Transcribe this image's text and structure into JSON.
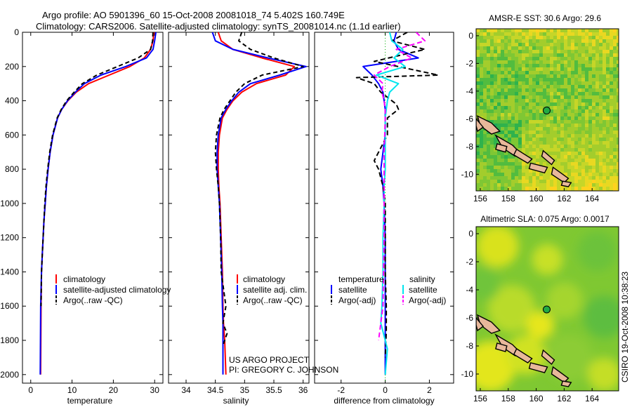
{
  "title": {
    "line1": "Argo profile: AO 5901396_60 15-Oct-2008 20081018_74 5.402S 160.749E",
    "line2": "Climatology: CARS2006. Satellite-adjusted climatology: synTS_20081014.nc (1.1d earlier)"
  },
  "colors": {
    "climatology": "#ff0000",
    "satellite": "#0000ff",
    "argo": "#000000",
    "sal_satellite": "#00e5ee",
    "sal_argo": "#ff00ff",
    "island": "#e8b89a",
    "marker": "#22aa44"
  },
  "chart_data": [
    {
      "type": "line",
      "id": "temperature",
      "xlabel": "temperature",
      "ylabel": "",
      "xlim": [
        -2,
        32
      ],
      "ylim": [
        2050,
        0
      ],
      "xticks": [
        0,
        10,
        20,
        30
      ],
      "yticks": [
        0,
        200,
        400,
        600,
        800,
        1000,
        1200,
        1400,
        1600,
        1800,
        2000
      ],
      "legend": [
        "climatology",
        "satellite-adjusted climatology",
        "Argo(..raw -QC)"
      ],
      "series": [
        {
          "name": "climatology",
          "color": "#ff0000",
          "dash": "",
          "x": [
            29.8,
            29.6,
            29.0,
            27.5,
            24.0,
            19.0,
            14.0,
            11.0,
            9.0,
            7.5,
            6.5,
            5.4,
            4.7,
            4.2,
            3.8,
            3.5,
            3.2,
            3.0,
            2.8,
            2.6,
            2.5,
            2.4
          ],
          "y": [
            0,
            50,
            100,
            150,
            200,
            250,
            300,
            350,
            400,
            450,
            500,
            600,
            700,
            800,
            900,
            1000,
            1100,
            1200,
            1300,
            1400,
            1600,
            2000
          ]
        },
        {
          "name": "satellite",
          "color": "#0000ff",
          "dash": "",
          "x": [
            30.3,
            30.0,
            29.6,
            28.0,
            23.0,
            17.0,
            13.0,
            10.8,
            8.9,
            7.5,
            6.5,
            5.4,
            4.7,
            4.2,
            3.8,
            3.5,
            3.2,
            3.0,
            2.8,
            2.6,
            2.4,
            2.3
          ],
          "y": [
            0,
            50,
            100,
            150,
            200,
            250,
            300,
            350,
            400,
            450,
            500,
            600,
            700,
            800,
            900,
            1000,
            1100,
            1200,
            1300,
            1400,
            1600,
            2000
          ]
        },
        {
          "name": "argo",
          "color": "#000000",
          "dash": "6,4",
          "x": [
            29.6,
            29.5,
            29.0,
            26.0,
            21.0,
            16.0,
            12.5,
            10.5,
            8.7,
            7.4,
            6.4,
            5.3,
            4.6,
            4.1,
            3.7,
            3.4,
            3.2,
            3.0,
            2.8,
            2.6,
            2.5
          ],
          "y": [
            0,
            50,
            100,
            150,
            200,
            250,
            300,
            350,
            400,
            450,
            500,
            600,
            700,
            800,
            900,
            1000,
            1100,
            1200,
            1300,
            1400,
            1600
          ]
        }
      ]
    },
    {
      "type": "line",
      "id": "salinity",
      "xlabel": "salinity",
      "ylabel": "",
      "xlim": [
        33.7,
        36.1
      ],
      "ylim": [
        2050,
        0
      ],
      "xticks": [
        34,
        34.5,
        35,
        35.5,
        36
      ],
      "legend": [
        "climatology",
        "satellite adj. clim.",
        "Argo(..raw -QC)"
      ],
      "series": [
        {
          "name": "climatology",
          "color": "#ff0000",
          "dash": "",
          "x": [
            34.55,
            34.6,
            34.8,
            35.3,
            35.85,
            35.7,
            35.2,
            34.95,
            34.8,
            34.7,
            34.62,
            34.57,
            34.55,
            34.55,
            34.56,
            34.58,
            34.6,
            34.62,
            34.63,
            34.64,
            34.66,
            34.68
          ],
          "y": [
            0,
            50,
            100,
            150,
            200,
            250,
            300,
            350,
            400,
            450,
            500,
            600,
            700,
            800,
            900,
            1000,
            1200,
            1400,
            1600,
            1700,
            1800,
            2000
          ]
        },
        {
          "name": "satellite",
          "color": "#0000ff",
          "dash": "",
          "x": [
            34.45,
            34.5,
            34.8,
            35.4,
            36.05,
            35.6,
            35.1,
            34.9,
            34.78,
            34.68,
            34.6,
            34.55,
            34.53,
            34.53,
            34.55,
            34.57,
            34.59,
            34.61,
            34.62,
            34.63,
            34.63,
            34.63
          ],
          "y": [
            0,
            50,
            100,
            150,
            200,
            250,
            300,
            350,
            400,
            450,
            500,
            600,
            700,
            800,
            900,
            1000,
            1200,
            1400,
            1600,
            1700,
            1800,
            2000
          ]
        },
        {
          "name": "argo",
          "color": "#000000",
          "dash": "6,4",
          "x": [
            34.95,
            34.9,
            35.1,
            35.5,
            36.0,
            35.3,
            35.0,
            34.85,
            34.75,
            34.65,
            34.58,
            34.52,
            34.5,
            34.52,
            34.55,
            34.57,
            34.59,
            34.6,
            34.68,
            34.63,
            34.7,
            34.64
          ],
          "y": [
            0,
            50,
            100,
            150,
            200,
            250,
            300,
            350,
            400,
            450,
            500,
            600,
            700,
            800,
            900,
            1000,
            1200,
            1400,
            1600,
            1700,
            1760,
            1820
          ]
        }
      ]
    },
    {
      "type": "line",
      "id": "difference",
      "xlabel": "difference from climatology",
      "xlim": [
        -3.2,
        3.1
      ],
      "ylim": [
        2050,
        0
      ],
      "xticks": [
        -2,
        0,
        2
      ],
      "legend": {
        "temperature_header": "temperature",
        "salinity_header": "salinity",
        "temperature": [
          "satellite",
          "Argo(-adj)"
        ],
        "salinity": [
          "satellite",
          "Argo(-adj)"
        ]
      },
      "series": [
        {
          "name": "temperature satellite",
          "color": "#0000ff",
          "dash": "",
          "x": [
            0.5,
            0.4,
            0.6,
            1.5,
            -1.0,
            -0.6,
            -0.3,
            -0.1,
            -0.05,
            0,
            0,
            0,
            -0.1,
            -0.2,
            -0.1,
            -0.05,
            0,
            0,
            0,
            0,
            0,
            0
          ],
          "y": [
            0,
            50,
            100,
            150,
            200,
            250,
            300,
            350,
            400,
            450,
            500,
            600,
            700,
            800,
            900,
            1000,
            1200,
            1400,
            1600,
            1700,
            1800,
            2000
          ]
        },
        {
          "name": "temperature argo",
          "color": "#000000",
          "dash": "7,4",
          "x": [
            1.0,
            0.3,
            1.8,
            -0.5,
            2.4,
            -1.3,
            -0.5,
            -0.2,
            0.5,
            0.6,
            0.1,
            0.1,
            -0.5,
            -0.3,
            -0.1,
            0,
            0,
            0,
            0.05,
            0.05,
            0
          ],
          "y": [
            0,
            50,
            100,
            170,
            250,
            265,
            300,
            350,
            420,
            450,
            500,
            600,
            750,
            800,
            900,
            1000,
            1200,
            1400,
            1600,
            1750,
            1900
          ]
        },
        {
          "name": "salinity satellite",
          "color": "#00e5ee",
          "dash": "",
          "x": [
            0.2,
            0.3,
            0.8,
            0.4,
            0.9,
            -0.4,
            0.6,
            0.2,
            0.1,
            0.05,
            0,
            0,
            0,
            0,
            -0.05,
            -0.05,
            -0.1,
            -0.1,
            -0.15,
            -0.2,
            0.1,
            0
          ],
          "y": [
            0,
            50,
            100,
            150,
            200,
            250,
            300,
            350,
            400,
            450,
            500,
            600,
            700,
            800,
            900,
            1000,
            1200,
            1400,
            1600,
            1700,
            1850,
            2000
          ]
        },
        {
          "name": "salinity argo",
          "color": "#ff00ff",
          "dash": "7,4",
          "x": [
            1.4,
            1.8,
            0.5,
            1.2,
            0.2,
            -0.5,
            -0.1,
            -0.15,
            -0.05,
            0,
            0,
            -0.02,
            -0.05,
            -0.05,
            -0.05,
            -0.05,
            -0.05,
            -0.08,
            -0.1,
            -0.2,
            -0.3
          ],
          "y": [
            0,
            50,
            100,
            150,
            200,
            250,
            300,
            350,
            400,
            450,
            500,
            600,
            700,
            800,
            900,
            1000,
            1200,
            1400,
            1600,
            1700,
            1800
          ]
        }
      ]
    },
    {
      "type": "heatmap",
      "id": "sst_map",
      "title": "AMSR-E SST: 30.6 Argo: 29.6",
      "xticks": [
        156,
        158,
        160,
        162,
        164
      ],
      "yticks": [
        0,
        -2,
        -4,
        -6,
        -8,
        -10
      ],
      "xlim": [
        155.7,
        165.9
      ],
      "ylim": [
        -11.2,
        0.5
      ],
      "argo_position": [
        160.749,
        -5.402
      ]
    },
    {
      "type": "heatmap",
      "id": "sla_map",
      "title": "Altimetric SLA: 0.075 Argo: 0.0017",
      "xticks": [
        156,
        158,
        160,
        162,
        164
      ],
      "yticks": [
        0,
        -2,
        -4,
        -6,
        -8,
        -10
      ],
      "xlim": [
        155.7,
        165.9
      ],
      "ylim": [
        -11.2,
        0.5
      ],
      "argo_position": [
        160.749,
        -5.402
      ]
    }
  ],
  "credit": {
    "line1": "US ARGO PROJECT",
    "line2": "PI: GREGORY C. JOHNSON"
  },
  "stamp": "CSIRO 19-Oct-2008 10:38:23"
}
